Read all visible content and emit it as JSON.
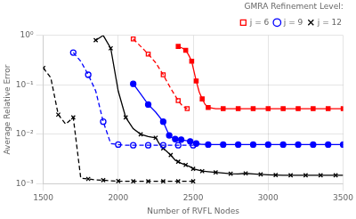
{
  "chart_data": {
    "type": "line",
    "xlabel": "Number of RVFL Nodes",
    "ylabel": "Average Relative Error",
    "legend_title": "GMRA Refinement Level:",
    "log": "y",
    "grid": true,
    "legend": "upper right",
    "xlim": [
      1500,
      3500
    ],
    "xticks": [
      1500,
      2000,
      2500,
      3000,
      3500
    ],
    "ylim": [
      0.001,
      1.0
    ],
    "yticks": [
      {
        "value": 0.001,
        "label": "10⁻³"
      },
      {
        "value": 0.01,
        "label": "10⁻²"
      },
      {
        "value": 0.1,
        "label": "10⁻¹"
      },
      {
        "value": 1,
        "label": "10⁰"
      }
    ],
    "series": [
      {
        "name": "j = 6",
        "color": "red",
        "line_style": "dashed",
        "marker": "open_square",
        "x": [
          2100,
          2150,
          2200,
          2250,
          2300,
          2350,
          2400,
          2430,
          2460
        ],
        "values": [
          0.85,
          0.6,
          0.42,
          0.28,
          0.16,
          0.085,
          0.048,
          0.037,
          0.033
        ]
      },
      {
        "name": "j = 6",
        "color": "red",
        "line_style": "solid",
        "marker": "square",
        "x": [
          2400,
          2430,
          2450,
          2470,
          2490,
          2500,
          2520,
          2540,
          2560,
          2580,
          2600,
          2650,
          2700,
          2750,
          2800,
          2850,
          2900,
          2950,
          3000,
          3050,
          3100,
          3150,
          3200,
          3250,
          3300,
          3350,
          3400,
          3450,
          3500
        ],
        "values": [
          0.6,
          0.55,
          0.5,
          0.4,
          0.3,
          0.22,
          0.12,
          0.072,
          0.052,
          0.04,
          0.035,
          0.033,
          0.033,
          0.033,
          0.033,
          0.033,
          0.033,
          0.033,
          0.033,
          0.033,
          0.033,
          0.033,
          0.033,
          0.033,
          0.033,
          0.033,
          0.033,
          0.033,
          0.033
        ]
      },
      {
        "name": "j = 9",
        "color": "blue",
        "line_style": "dashed",
        "marker": "open_circle",
        "x": [
          1700,
          1750,
          1800,
          1850,
          1900,
          1950,
          2000,
          2050,
          2100,
          2150,
          2200,
          2250,
          2300,
          2350,
          2400,
          2450,
          2500
        ],
        "values": [
          0.45,
          0.3,
          0.16,
          0.075,
          0.018,
          0.0065,
          0.0062,
          0.006,
          0.006,
          0.006,
          0.006,
          0.006,
          0.006,
          0.006,
          0.006,
          0.006,
          0.006
        ]
      },
      {
        "name": "j = 9",
        "color": "blue",
        "line_style": "solid",
        "marker": "circle",
        "x": [
          2100,
          2150,
          2200,
          2250,
          2300,
          2320,
          2340,
          2360,
          2380,
          2400,
          2420,
          2450,
          2480,
          2500,
          2520,
          2550,
          2600,
          2650,
          2700,
          2750,
          2800,
          2850,
          2900,
          2950,
          3000,
          3050,
          3100,
          3150,
          3200,
          3250,
          3300,
          3350,
          3400,
          3450,
          3500
        ],
        "values": [
          0.105,
          0.065,
          0.04,
          0.028,
          0.018,
          0.013,
          0.0095,
          0.0085,
          0.008,
          0.008,
          0.0078,
          0.0075,
          0.0072,
          0.0068,
          0.0065,
          0.0063,
          0.0062,
          0.0062,
          0.0062,
          0.0062,
          0.0062,
          0.0062,
          0.0062,
          0.0062,
          0.0062,
          0.0062,
          0.0062,
          0.0062,
          0.0062,
          0.0062,
          0.0062,
          0.0062,
          0.0062,
          0.0062,
          0.0062
        ]
      },
      {
        "name": "j = 12",
        "color": "black",
        "line_style": "dashed",
        "marker": "x",
        "x": [
          1500,
          1550,
          1600,
          1650,
          1700,
          1750,
          1800,
          1850,
          1900,
          1950,
          2000,
          2050,
          2100,
          2150,
          2200,
          2250,
          2300,
          2350,
          2400,
          2450,
          2500
        ],
        "values": [
          0.22,
          0.14,
          0.025,
          0.016,
          0.022,
          0.0013,
          0.00125,
          0.0012,
          0.00118,
          0.00115,
          0.00113,
          0.00112,
          0.00112,
          0.00112,
          0.00112,
          0.00112,
          0.00112,
          0.00112,
          0.00112,
          0.00112,
          0.00112
        ]
      },
      {
        "name": "j = 12",
        "color": "black",
        "line_style": "solid",
        "marker": "x",
        "x": [
          1850,
          1900,
          1950,
          2000,
          2050,
          2100,
          2150,
          2200,
          2250,
          2280,
          2300,
          2320,
          2350,
          2380,
          2400,
          2420,
          2450,
          2480,
          2500,
          2530,
          2560,
          2600,
          2650,
          2700,
          2750,
          2800,
          2850,
          2900,
          2950,
          3000,
          3050,
          3100,
          3150,
          3200,
          3250,
          3300,
          3350,
          3400,
          3450,
          3500
        ],
        "values": [
          0.8,
          1.0,
          0.55,
          0.075,
          0.022,
          0.013,
          0.01,
          0.009,
          0.0085,
          0.006,
          0.0052,
          0.0046,
          0.0038,
          0.003,
          0.0028,
          0.0026,
          0.0024,
          0.0022,
          0.002,
          0.0019,
          0.0018,
          0.00175,
          0.0017,
          0.00165,
          0.0016,
          0.00158,
          0.00162,
          0.00158,
          0.00155,
          0.00152,
          0.0015,
          0.00148,
          0.00148,
          0.00148,
          0.00148,
          0.00148,
          0.00148,
          0.00148,
          0.00148,
          0.00148
        ]
      }
    ]
  }
}
